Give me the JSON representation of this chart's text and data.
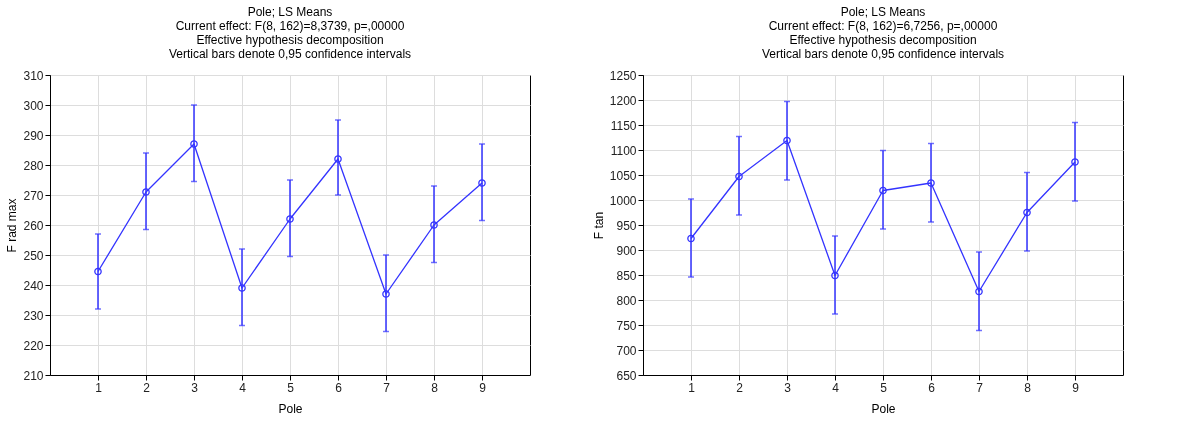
{
  "chart_data": [
    {
      "type": "line",
      "title": "Pole; LS Means",
      "subtitle": "Current effect: F(8, 162)=8,3739, p=,00000\nEffective hypothesis decomposition\nVertical bars denote 0,95 confidence intervals",
      "xlabel": "Pole",
      "ylabel": "F rad max",
      "x": [
        1,
        2,
        3,
        4,
        5,
        6,
        7,
        8,
        9
      ],
      "xlim": [
        0,
        10
      ],
      "xticks": [
        1,
        2,
        3,
        4,
        5,
        6,
        7,
        8,
        9
      ],
      "ylim": [
        210,
        310
      ],
      "yticks": [
        210,
        220,
        230,
        240,
        250,
        260,
        270,
        280,
        290,
        300,
        310
      ],
      "grid": true,
      "marker": "circle",
      "series": [
        {
          "color": "#3333ff",
          "values": [
            244.5,
            271,
            287,
            239,
            262,
            282,
            237,
            260,
            274
          ],
          "errors": [
            [
              232,
              257
            ],
            [
              258.5,
              284
            ],
            [
              274.5,
              300
            ],
            [
              226.5,
              252
            ],
            [
              249.5,
              275
            ],
            [
              270,
              295
            ],
            [
              224.5,
              250
            ],
            [
              247.5,
              273
            ],
            [
              261.5,
              287
            ]
          ]
        }
      ]
    },
    {
      "type": "line",
      "title": "Pole; LS Means",
      "subtitle": "Current effect: F(8, 162)=6,7256, p=,00000\nEffective hypothesis decomposition\nVertical bars denote 0,95 confidence intervals",
      "xlabel": "Pole",
      "ylabel": "F tan",
      "x": [
        1,
        2,
        3,
        4,
        5,
        6,
        7,
        8,
        9
      ],
      "xlim": [
        0,
        10
      ],
      "xticks": [
        1,
        2,
        3,
        4,
        5,
        6,
        7,
        8,
        9
      ],
      "ylim": [
        650,
        1250
      ],
      "yticks": [
        650,
        700,
        750,
        800,
        850,
        900,
        950,
        1000,
        1050,
        1100,
        1150,
        1200,
        1250
      ],
      "grid": true,
      "marker": "circle",
      "series": [
        {
          "color": "#3333ff",
          "values": [
            923,
            1047,
            1119,
            849,
            1019,
            1034,
            817,
            975,
            1076
          ],
          "errors": [
            [
              846,
              1002
            ],
            [
              970,
              1127
            ],
            [
              1040,
              1197
            ],
            [
              772,
              928
            ],
            [
              942,
              1099
            ],
            [
              956,
              1113
            ],
            [
              739,
              896
            ],
            [
              898,
              1055
            ],
            [
              998,
              1155
            ]
          ]
        }
      ]
    }
  ]
}
